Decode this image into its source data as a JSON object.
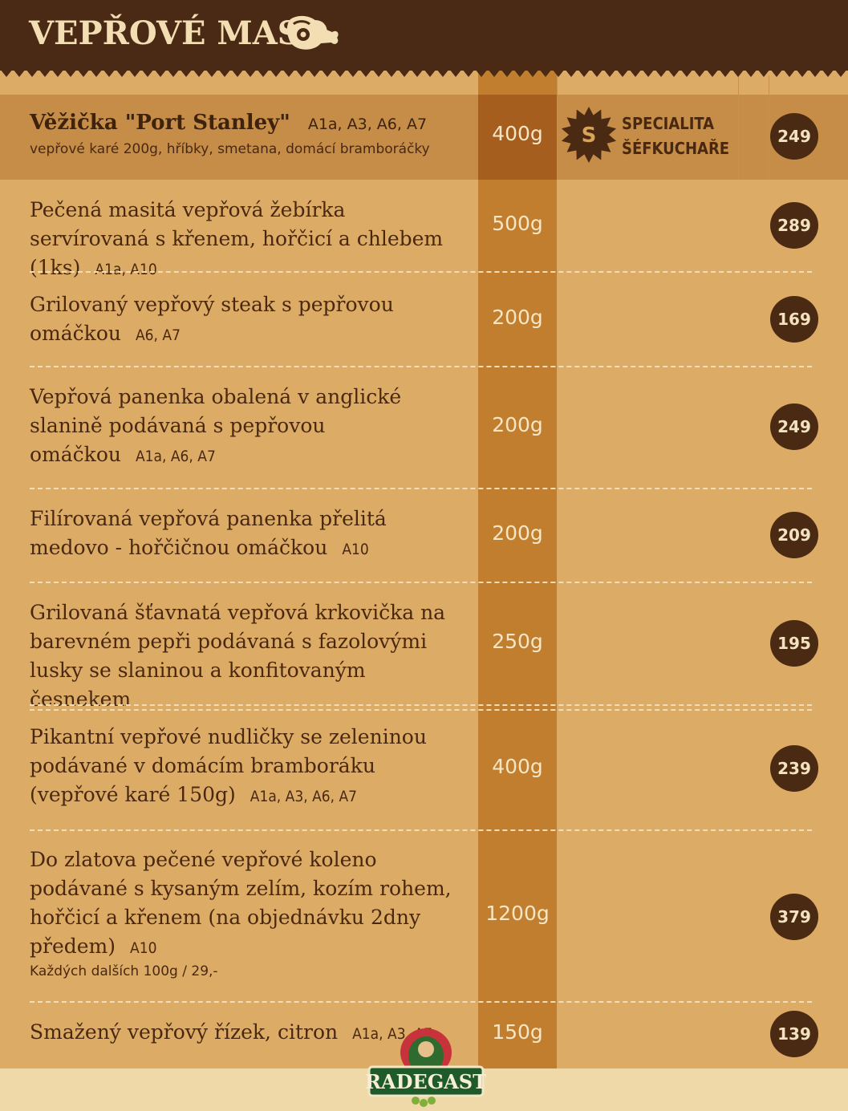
{
  "header": {
    "title": "VEPŘOVÉ MASO",
    "icon": "ham-icon"
  },
  "special": {
    "name": "Věžička \"Port Stanley\"",
    "allergens": "A1a, A3, A6, A7",
    "description": "vepřové karé 200g, hříbky, smetana, domácí bramboráčky",
    "weight": "400g",
    "badge_letter": "S",
    "badge_line1": "SPECIALITA",
    "badge_line2": "ŠÉFKUCHAŘE",
    "price": "249"
  },
  "items": [
    {
      "name": "Pečená masitá vepřová žebírka servírovaná s křenem, hořčicí a chlebem (1ks)",
      "allergens": "A1a, A10",
      "note": "",
      "weight": "500g",
      "price": "289"
    },
    {
      "name": "Grilovaný vepřový steak s pepřovou omáčkou",
      "allergens": "A6, A7",
      "note": "",
      "weight": "200g",
      "price": "169"
    },
    {
      "name": "Vepřová panenka obalená v anglické slanině podávaná s pepřovou omáčkou",
      "allergens": "A1a, A6, A7",
      "note": "",
      "weight": "200g",
      "price": "249"
    },
    {
      "name": "Filírovaná vepřová panenka přelitá medovo - hořčičnou omáčkou",
      "allergens": "A10",
      "note": "",
      "weight": "200g",
      "price": "209"
    },
    {
      "name": "Grilovaná šťavnatá vepřová krkovička na barevném pepři podávaná s fazolovými lusky se slaninou a konfitovaným česnekem",
      "allergens": "",
      "note": "",
      "weight": "250g",
      "price": "195"
    },
    {
      "name": "Pikantní vepřové nudličky se zeleninou podávané v domácím bramboráku (vepřové karé 150g)",
      "allergens": "A1a, A3, A6, A7",
      "note": "",
      "weight": "400g",
      "price": "239"
    },
    {
      "name": "Do zlatova pečené vepřové koleno podávané s kysaným zelím, kozím rohem, hořčicí a křenem (na objednávku 2dny předem)",
      "allergens": "A10",
      "note": "Každých dalších 100g / 29,-",
      "weight": "1200g",
      "price": "379"
    },
    {
      "name": "Smažený vepřový řízek, citron",
      "allergens": "A1a, A3, A7",
      "note": "",
      "weight": "150g",
      "price": "139"
    }
  ],
  "footer": {
    "logo_text": "RADEGAST"
  },
  "colors": {
    "header": "#4a2a14",
    "background": "#dcac66",
    "weight_column": "#c17e2e",
    "price_badge": "#4a2a12"
  }
}
